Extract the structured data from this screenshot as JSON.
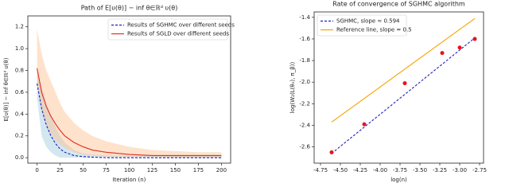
{
  "chart_data": [
    {
      "type": "line",
      "title": "Path of E[υ(θ)] − inf θ∈ℝᵈ υ(θ)",
      "xlabel": "Iteration (n)",
      "ylabel": "E[υ(θ)] − inf θ∈ℝᵈ υ(θ)",
      "x": [
        0,
        5,
        10,
        15,
        20,
        25,
        30,
        40,
        50,
        60,
        75,
        100,
        125,
        150,
        175,
        200
      ],
      "series": [
        {
          "name": "Results of SGHMC over different seeds",
          "color": "#1f1fbf",
          "band_color": "#9ecae1",
          "dash": true,
          "values": [
            0.68,
            0.45,
            0.3,
            0.2,
            0.13,
            0.08,
            0.05,
            0.02,
            0.01,
            0.005,
            0,
            0,
            0,
            0,
            0,
            0
          ],
          "band_lower": [
            0.55,
            0.2,
            0.1,
            0.05,
            0.02,
            0,
            0,
            0,
            0,
            0,
            0,
            0,
            0,
            0,
            0,
            0
          ],
          "band_upper": [
            0.8,
            0.65,
            0.5,
            0.38,
            0.28,
            0.2,
            0.14,
            0.07,
            0.04,
            0.03,
            0.02,
            0.02,
            0.02,
            0.02,
            0.02,
            0.02
          ]
        },
        {
          "name": "Results of SGLD over different seeds",
          "color": "#e0301e",
          "band_color": "#fdbf8e",
          "dash": false,
          "values": [
            0.82,
            0.6,
            0.47,
            0.38,
            0.31,
            0.25,
            0.2,
            0.14,
            0.1,
            0.07,
            0.05,
            0.03,
            0.02,
            0.02,
            0.02,
            0.02
          ],
          "band_lower": [
            0.7,
            0.42,
            0.3,
            0.22,
            0.16,
            0.12,
            0.09,
            0.05,
            0.03,
            0.02,
            0.01,
            0.01,
            0.01,
            0,
            0,
            0
          ],
          "band_upper": [
            1.18,
            0.95,
            0.8,
            0.7,
            0.6,
            0.5,
            0.42,
            0.32,
            0.25,
            0.2,
            0.15,
            0.1,
            0.07,
            0.06,
            0.05,
            0.05
          ]
        }
      ],
      "xlim": [
        -10,
        210
      ],
      "xticks": [
        0,
        25,
        50,
        75,
        100,
        125,
        150,
        175,
        200
      ],
      "ylim": [
        -0.05,
        1.3
      ],
      "yticks": [
        {
          "value": 0,
          "label": "0.0"
        },
        0.2,
        0.4,
        0.6,
        0.8,
        {
          "value": 1,
          "label": "1.0"
        },
        1.2
      ],
      "legend": "upper right"
    },
    {
      "type": "line",
      "title": "Rate of convergence of SGHMC algorithm",
      "xlabel": "log(n)",
      "ylabel": "log(W₂(L(θₙ), π_β))",
      "series": [
        {
          "name": "SGHMC, slope ≈ 0.594",
          "color": "#1f1fbf",
          "dash": true,
          "x": [
            -4.61,
            -2.81
          ],
          "values": [
            -2.66,
            -1.59
          ]
        },
        {
          "name": "Reference line, slope = 0.5",
          "color": "#f5a300",
          "dash": false,
          "x": [
            -4.61,
            -2.81
          ],
          "values": [
            -2.37,
            -1.41
          ]
        },
        {
          "type": "scatter",
          "color": "#e8141e",
          "x": [
            -4.61,
            -4.2,
            -3.69,
            -3.22,
            -3.0,
            -2.81
          ],
          "values": [
            -2.65,
            -2.39,
            -2.01,
            -1.73,
            -1.68,
            -1.6
          ]
        }
      ],
      "xlim": [
        -4.83,
        -2.7
      ],
      "xticks": [
        -4.75,
        {
          "value": -4.5,
          "label": "-4.50"
        },
        -4.25,
        {
          "value": -4,
          "label": "-4.00"
        },
        -3.75,
        {
          "value": -3.5,
          "label": "-3.50"
        },
        -3.25,
        {
          "value": -3,
          "label": "-3.00"
        },
        -2.75
      ],
      "ylim": [
        -2.75,
        -1.35
      ],
      "yticks": [
        -2.6,
        -2.4,
        -2.2,
        {
          "value": -2,
          "label": "-2.0"
        },
        -1.8,
        -1.6,
        -1.4
      ],
      "legend": "upper left"
    }
  ]
}
